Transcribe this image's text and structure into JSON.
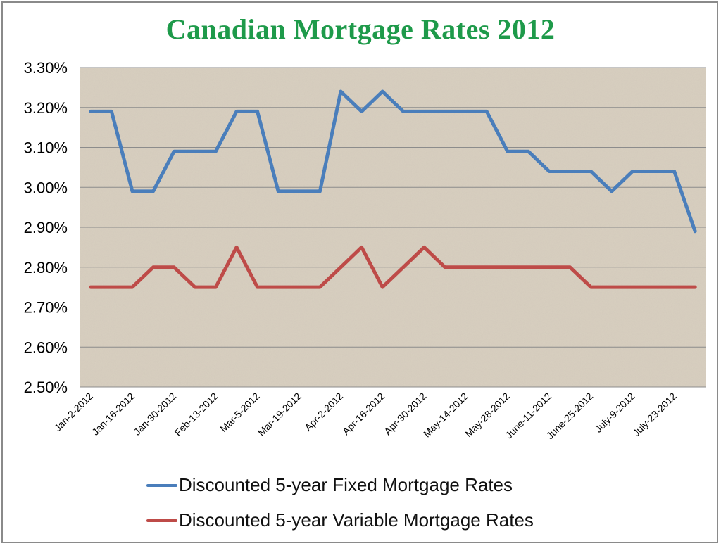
{
  "chart_data": {
    "type": "line",
    "title": "Canadian Mortgage Rates 2012",
    "xlabel": "",
    "ylabel": "",
    "ylim": [
      2.5,
      3.3
    ],
    "yticks": [
      "2.50%",
      "2.60%",
      "2.70%",
      "2.80%",
      "2.90%",
      "3.00%",
      "3.10%",
      "3.20%",
      "3.30%"
    ],
    "xtick_labels": [
      "Jan-2-2012",
      "Jan-16-2012",
      "Jan-30-2012",
      "Feb-13-2012",
      "Mar-5-2012",
      "Mar-19-2012",
      "Apr-2-2012",
      "Apr-16-2012",
      "Apr-30-2012",
      "May-14-2012",
      "May-28-2012",
      "June-11-2012",
      "June-25-2012",
      "July-9-2012",
      "July-23-2012"
    ],
    "grid": true,
    "legend_position": "bottom",
    "series": [
      {
        "name": "Discounted 5-year Fixed Mortgage Rates",
        "color": "#4a7ebb",
        "values": [
          3.19,
          3.19,
          2.99,
          2.99,
          3.09,
          3.09,
          3.09,
          3.19,
          3.19,
          2.99,
          2.99,
          2.99,
          3.24,
          3.19,
          3.24,
          3.19,
          3.19,
          3.19,
          3.19,
          3.19,
          3.09,
          3.09,
          3.04,
          3.04,
          3.04,
          2.99,
          3.04,
          3.04,
          3.04,
          2.89
        ]
      },
      {
        "name": "Discounted 5-year Variable Mortgage Rates",
        "color": "#be4b48",
        "values": [
          2.75,
          2.75,
          2.75,
          2.8,
          2.8,
          2.75,
          2.75,
          2.85,
          2.75,
          2.75,
          2.75,
          2.75,
          2.8,
          2.85,
          2.75,
          2.8,
          2.85,
          2.8,
          2.8,
          2.8,
          2.8,
          2.8,
          2.8,
          2.8,
          2.75,
          2.75,
          2.75,
          2.75,
          2.75,
          2.75
        ]
      }
    ]
  },
  "colors": {
    "title": "#1e9a4a",
    "plot_background": "#d9d0c1",
    "gridline": "#8c8c8c"
  }
}
